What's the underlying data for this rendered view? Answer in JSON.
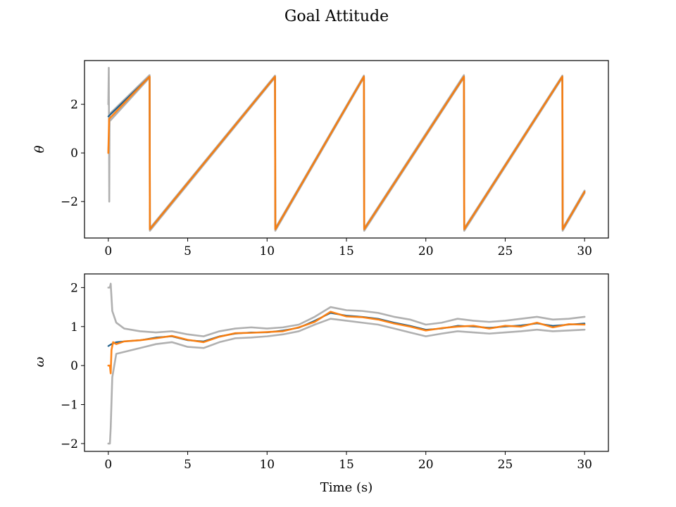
{
  "figure": {
    "title": "Goal Attitude"
  },
  "chart_data": [
    {
      "type": "line",
      "ylabel": "θ",
      "xlabel": "",
      "xlim": [
        -1.5,
        31.5
      ],
      "ylim": [
        -3.5,
        3.8
      ],
      "xticks": [
        0,
        5,
        10,
        15,
        20,
        25,
        30
      ],
      "yticks": [
        -2,
        0,
        2
      ],
      "grid": false,
      "series": [
        {
          "role": "band-upper",
          "color": "#b0b0b0",
          "points": [
            [
              0,
              2.0
            ],
            [
              0.03,
              3.5
            ],
            [
              0.06,
              -2.0
            ],
            [
              0.08,
              1.6
            ],
            [
              2.6,
              3.2
            ],
            [
              2.62,
              -3.1
            ],
            [
              10.5,
              3.18
            ],
            [
              10.52,
              -3.1
            ],
            [
              16.1,
              3.18
            ],
            [
              16.12,
              -3.1
            ],
            [
              22.4,
              3.2
            ],
            [
              22.42,
              -3.1
            ],
            [
              28.6,
              3.18
            ],
            [
              28.62,
              -3.1
            ],
            [
              30,
              -1.55
            ]
          ]
        },
        {
          "role": "band-lower",
          "color": "#b0b0b0",
          "points": [
            [
              0,
              0
            ],
            [
              0.08,
              1.3
            ],
            [
              2.6,
              3.1
            ],
            [
              2.62,
              -3.2
            ],
            [
              10.5,
              3.1
            ],
            [
              10.52,
              -3.2
            ],
            [
              16.1,
              3.1
            ],
            [
              16.12,
              -3.2
            ],
            [
              22.4,
              3.1
            ],
            [
              22.42,
              -3.2
            ],
            [
              28.6,
              3.1
            ],
            [
              28.62,
              -3.2
            ],
            [
              30,
              -1.65
            ]
          ]
        },
        {
          "role": "estimate",
          "color": "#1f5f8b",
          "points": [
            [
              0,
              1.5
            ],
            [
              2.6,
              3.14
            ],
            [
              2.62,
              -3.14
            ],
            [
              10.5,
              3.14
            ],
            [
              10.52,
              -3.14
            ],
            [
              16.1,
              3.14
            ],
            [
              16.12,
              -3.14
            ],
            [
              22.4,
              3.14
            ],
            [
              22.42,
              -3.14
            ],
            [
              28.6,
              3.14
            ],
            [
              28.62,
              -3.14
            ],
            [
              30,
              -1.6
            ]
          ]
        },
        {
          "role": "truth",
          "color": "#ff7f0e",
          "points": [
            [
              0,
              0
            ],
            [
              0.05,
              1.4
            ],
            [
              2.6,
              3.14
            ],
            [
              2.62,
              -3.14
            ],
            [
              10.5,
              3.14
            ],
            [
              10.52,
              -3.14
            ],
            [
              16.1,
              3.14
            ],
            [
              16.12,
              -3.14
            ],
            [
              22.4,
              3.14
            ],
            [
              22.42,
              -3.14
            ],
            [
              28.6,
              3.14
            ],
            [
              28.62,
              -3.14
            ],
            [
              30,
              -1.6
            ]
          ]
        }
      ]
    },
    {
      "type": "line",
      "ylabel": "ω",
      "xlabel": "Time (s)",
      "xlim": [
        -1.5,
        31.5
      ],
      "ylim": [
        -2.2,
        2.35
      ],
      "xticks": [
        0,
        5,
        10,
        15,
        20,
        25,
        30
      ],
      "yticks": [
        -2,
        -1,
        0,
        1,
        2
      ],
      "grid": false,
      "series": [
        {
          "role": "band-upper",
          "color": "#b0b0b0",
          "points": [
            [
              0,
              2.0
            ],
            [
              0.1,
              2.0
            ],
            [
              0.15,
              2.1
            ],
            [
              0.25,
              1.4
            ],
            [
              0.5,
              1.1
            ],
            [
              1,
              0.95
            ],
            [
              2,
              0.88
            ],
            [
              3,
              0.85
            ],
            [
              4,
              0.88
            ],
            [
              5,
              0.8
            ],
            [
              6,
              0.75
            ],
            [
              7,
              0.88
            ],
            [
              8,
              0.95
            ],
            [
              9,
              0.98
            ],
            [
              10,
              0.95
            ],
            [
              11,
              0.98
            ],
            [
              12,
              1.05
            ],
            [
              13,
              1.25
            ],
            [
              14,
              1.5
            ],
            [
              15,
              1.42
            ],
            [
              16,
              1.4
            ],
            [
              17,
              1.35
            ],
            [
              18,
              1.25
            ],
            [
              19,
              1.18
            ],
            [
              20,
              1.05
            ],
            [
              21,
              1.1
            ],
            [
              22,
              1.2
            ],
            [
              23,
              1.15
            ],
            [
              24,
              1.12
            ],
            [
              25,
              1.15
            ],
            [
              26,
              1.2
            ],
            [
              27,
              1.25
            ],
            [
              28,
              1.18
            ],
            [
              29,
              1.2
            ],
            [
              30,
              1.25
            ]
          ]
        },
        {
          "role": "band-lower",
          "color": "#b0b0b0",
          "points": [
            [
              0,
              -2.0
            ],
            [
              0.1,
              -2.0
            ],
            [
              0.15,
              -1.6
            ],
            [
              0.25,
              -0.3
            ],
            [
              0.5,
              0.3
            ],
            [
              1,
              0.35
            ],
            [
              2,
              0.45
            ],
            [
              3,
              0.55
            ],
            [
              4,
              0.6
            ],
            [
              5,
              0.48
            ],
            [
              6,
              0.45
            ],
            [
              7,
              0.6
            ],
            [
              8,
              0.7
            ],
            [
              9,
              0.72
            ],
            [
              10,
              0.75
            ],
            [
              11,
              0.8
            ],
            [
              12,
              0.88
            ],
            [
              13,
              1.05
            ],
            [
              14,
              1.2
            ],
            [
              15,
              1.15
            ],
            [
              16,
              1.1
            ],
            [
              17,
              1.05
            ],
            [
              18,
              0.95
            ],
            [
              19,
              0.85
            ],
            [
              20,
              0.75
            ],
            [
              21,
              0.82
            ],
            [
              22,
              0.88
            ],
            [
              23,
              0.85
            ],
            [
              24,
              0.82
            ],
            [
              25,
              0.85
            ],
            [
              26,
              0.88
            ],
            [
              27,
              0.92
            ],
            [
              28,
              0.88
            ],
            [
              29,
              0.9
            ],
            [
              30,
              0.92
            ]
          ]
        },
        {
          "role": "estimate",
          "color": "#1f5f8b",
          "points": [
            [
              0,
              0.5
            ],
            [
              0.2,
              0.55
            ],
            [
              0.5,
              0.6
            ],
            [
              1,
              0.62
            ],
            [
              2,
              0.65
            ],
            [
              3,
              0.72
            ],
            [
              4,
              0.75
            ],
            [
              5,
              0.65
            ],
            [
              6,
              0.62
            ],
            [
              7,
              0.75
            ],
            [
              8,
              0.82
            ],
            [
              9,
              0.85
            ],
            [
              10,
              0.85
            ],
            [
              11,
              0.9
            ],
            [
              12,
              0.97
            ],
            [
              13,
              1.15
            ],
            [
              14,
              1.35
            ],
            [
              15,
              1.28
            ],
            [
              16,
              1.25
            ],
            [
              17,
              1.2
            ],
            [
              18,
              1.1
            ],
            [
              19,
              1.02
            ],
            [
              20,
              0.92
            ],
            [
              21,
              0.95
            ],
            [
              22,
              1.02
            ],
            [
              23,
              1.0
            ],
            [
              24,
              0.97
            ],
            [
              25,
              1.0
            ],
            [
              26,
              1.03
            ],
            [
              27,
              1.08
            ],
            [
              28,
              1.02
            ],
            [
              29,
              1.05
            ],
            [
              30,
              1.08
            ]
          ]
        },
        {
          "role": "truth",
          "color": "#ff7f0e",
          "points": [
            [
              0,
              0
            ],
            [
              0.1,
              0
            ],
            [
              0.15,
              -0.2
            ],
            [
              0.2,
              0.4
            ],
            [
              0.3,
              0.6
            ],
            [
              0.5,
              0.55
            ],
            [
              1,
              0.62
            ],
            [
              2,
              0.65
            ],
            [
              3,
              0.7
            ],
            [
              4,
              0.76
            ],
            [
              5,
              0.66
            ],
            [
              6,
              0.6
            ],
            [
              7,
              0.74
            ],
            [
              8,
              0.83
            ],
            [
              9,
              0.84
            ],
            [
              10,
              0.86
            ],
            [
              11,
              0.88
            ],
            [
              12,
              0.98
            ],
            [
              13,
              1.12
            ],
            [
              14,
              1.38
            ],
            [
              15,
              1.26
            ],
            [
              16,
              1.24
            ],
            [
              17,
              1.18
            ],
            [
              18,
              1.08
            ],
            [
              19,
              1.0
            ],
            [
              20,
              0.9
            ],
            [
              21,
              0.96
            ],
            [
              22,
              1.0
            ],
            [
              23,
              1.02
            ],
            [
              24,
              0.95
            ],
            [
              25,
              1.02
            ],
            [
              26,
              1.0
            ],
            [
              27,
              1.1
            ],
            [
              28,
              0.98
            ],
            [
              29,
              1.06
            ],
            [
              30,
              1.05
            ]
          ]
        }
      ]
    }
  ]
}
